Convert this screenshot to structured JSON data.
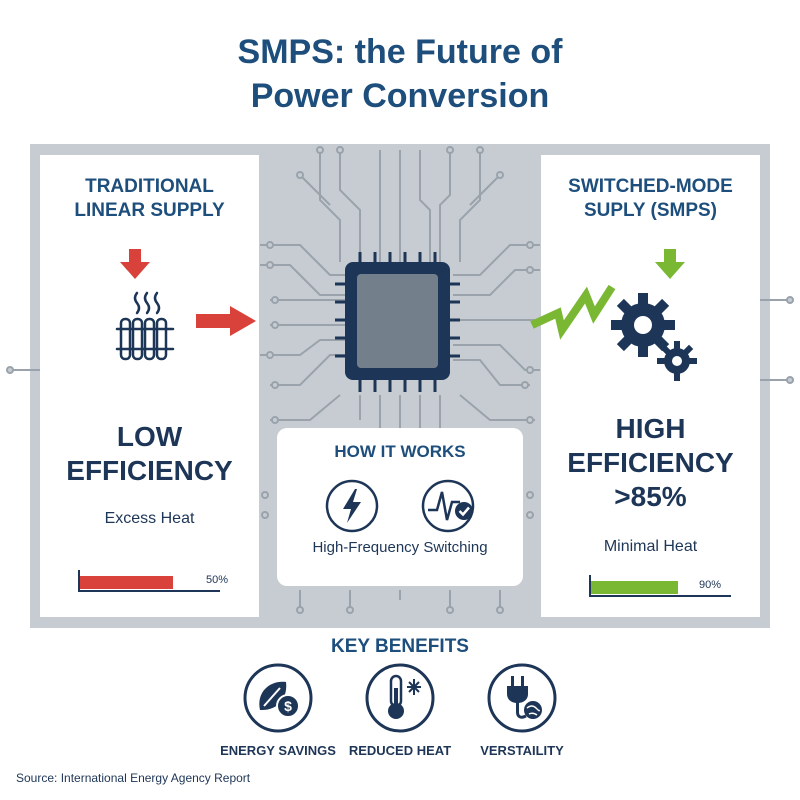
{
  "title_line1": "SMPS: the Future of",
  "title_line2": "Power Conversion",
  "left_panel": {
    "heading_line1": "TRADITIONAL",
    "heading_line2": "LINEAR SUPPLY",
    "efficiency_line1": "LOW",
    "efficiency_line2": "EFFICIENCY",
    "note": "Excess Heat",
    "bar_label": "50%",
    "bar_fraction": 0.5,
    "bar_color": "#d9413b",
    "icons": [
      "down-arrow-icon",
      "heater-icon",
      "right-arrow-icon"
    ]
  },
  "right_panel": {
    "heading_line1": "SWITCHED-MODE",
    "heading_line2": "SUPLY (SMPS)",
    "efficiency_line1": "HIGH",
    "efficiency_line2": "EFFICIENCY",
    "efficiency_line3": ">85%",
    "note": "Minimal Heat",
    "bar_label": "90%",
    "bar_fraction": 0.9,
    "bar_color": "#7ab833",
    "icons": [
      "down-arrow-icon",
      "lightning-zigzag-icon",
      "gears-icon"
    ]
  },
  "how_it_works": {
    "title": "HOW IT WORKS",
    "caption": "High-Frequency Switching",
    "icons": [
      "lightning-bolt-icon",
      "waveform-check-icon"
    ]
  },
  "key_benefits": {
    "title": "KEY BENEFITS",
    "items": [
      {
        "label": "ENERGY SAVINGS",
        "icon": "leaf-dollar-icon"
      },
      {
        "label": "REDUCED HEAT",
        "icon": "thermometer-snowflake-icon"
      },
      {
        "label": "VERSTAILITY",
        "icon": "plug-globe-icon"
      }
    ]
  },
  "source": "Source: International Energy Agency Report",
  "colors": {
    "navy": "#1d3556",
    "title_blue": "#1d4e7c",
    "red": "#d9413b",
    "green": "#7ab833",
    "gray_panel": "#c6ccd2"
  }
}
